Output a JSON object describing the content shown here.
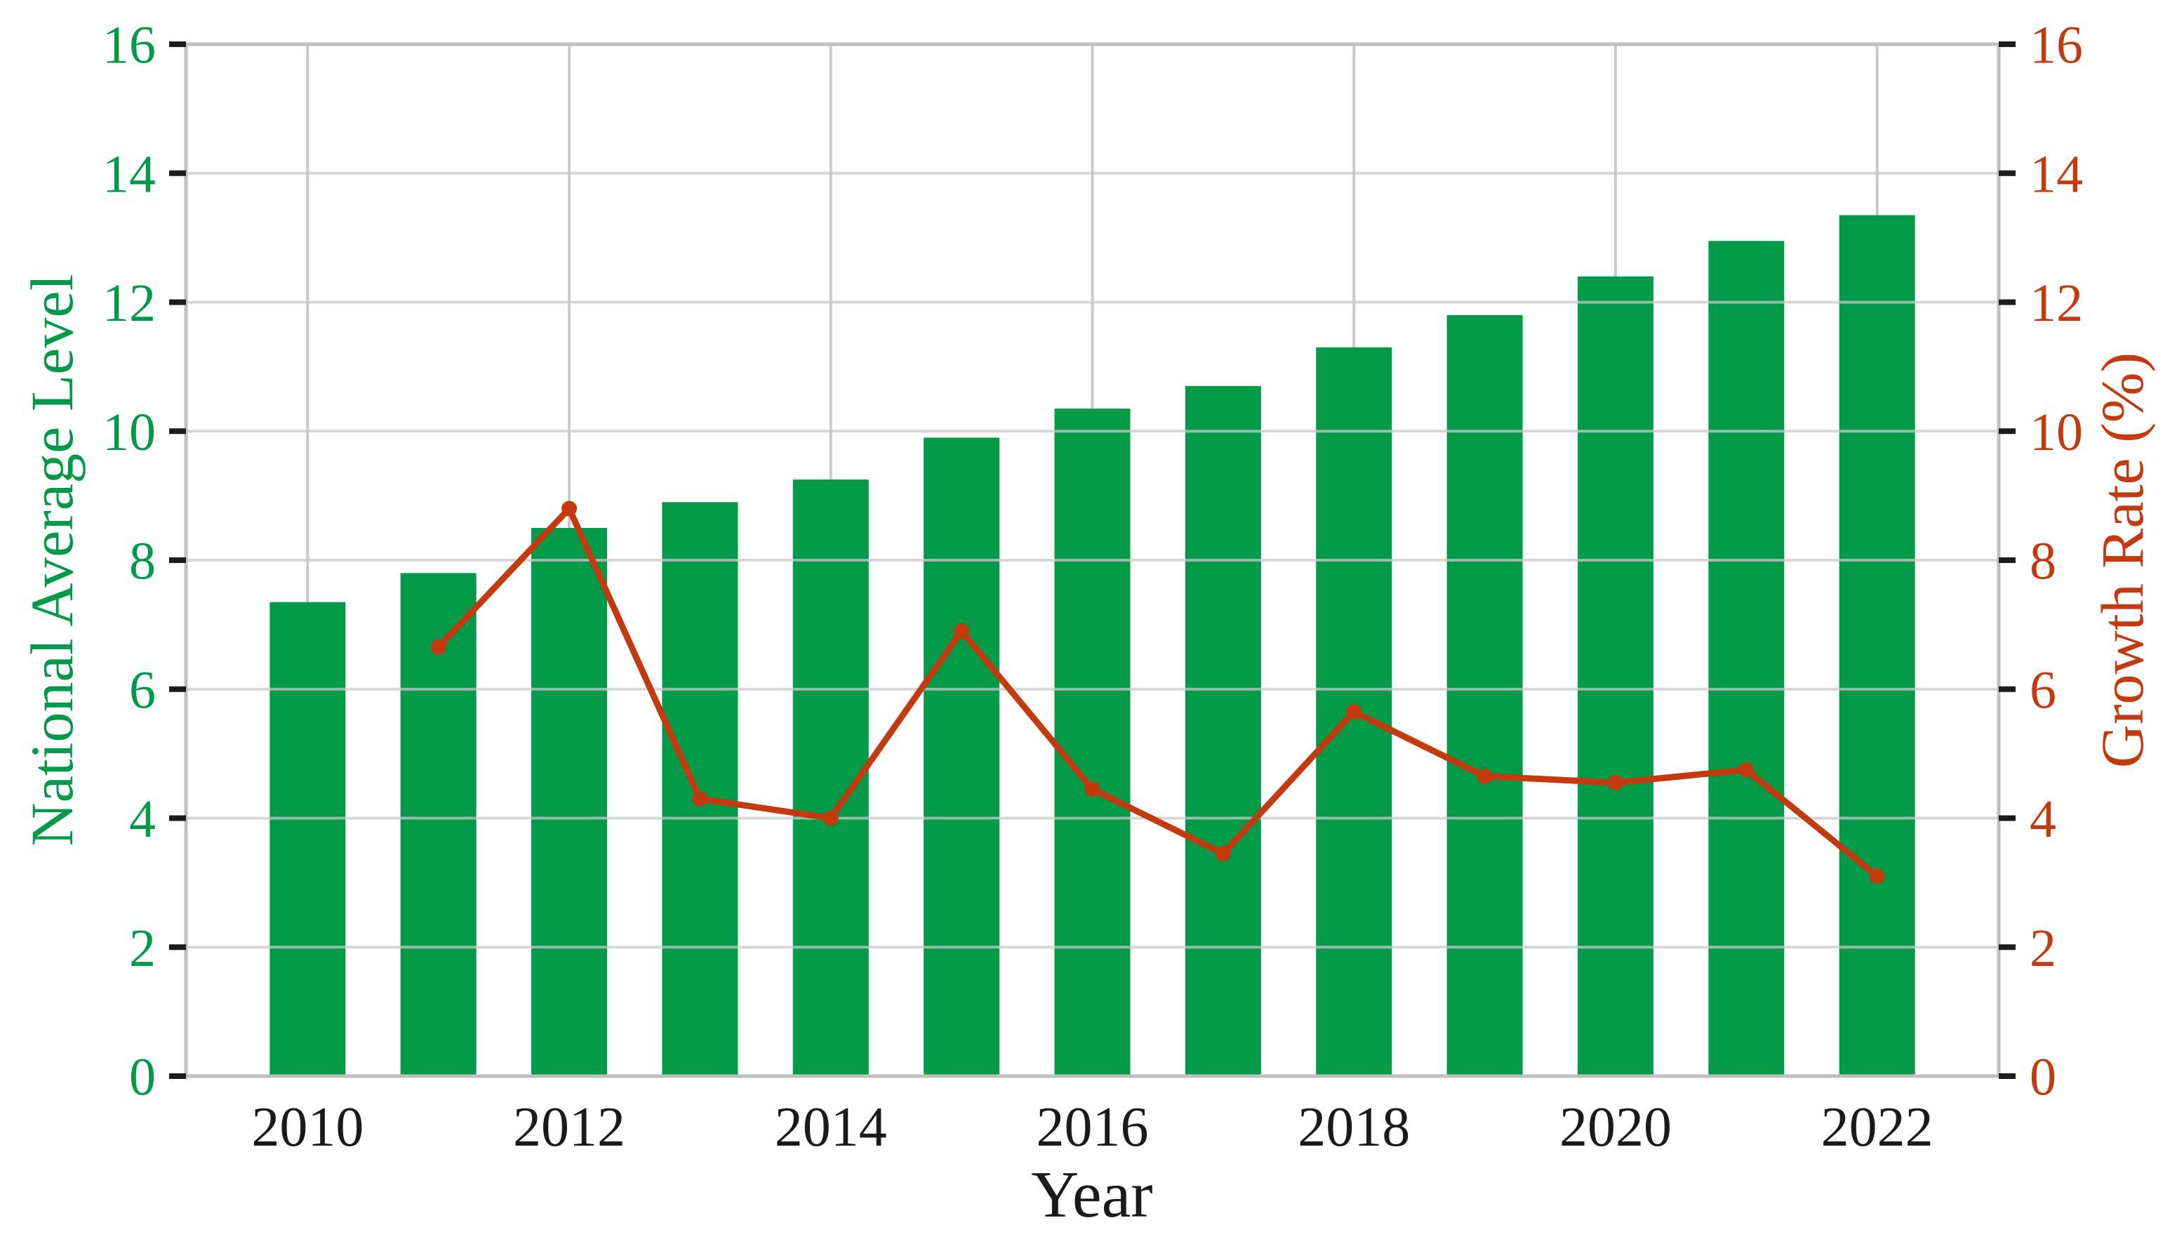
{
  "chart_data": {
    "type": "combo",
    "categories": [
      "2010",
      "2011",
      "2012",
      "2013",
      "2014",
      "2015",
      "2016",
      "2017",
      "2018",
      "2019",
      "2020",
      "2021",
      "2022"
    ],
    "x_tick_labels": [
      "2010",
      "2012",
      "2014",
      "2016",
      "2018",
      "2020",
      "2022"
    ],
    "series": [
      {
        "name": "National Average Level",
        "type": "bar",
        "y_axis": "left",
        "values": [
          7.35,
          7.8,
          8.5,
          8.9,
          9.25,
          9.9,
          10.35,
          10.7,
          11.3,
          11.8,
          12.4,
          12.95,
          13.35
        ]
      },
      {
        "name": "Growth Rate (%)",
        "type": "line",
        "y_axis": "right",
        "values": [
          null,
          6.65,
          8.8,
          4.3,
          4.0,
          6.9,
          4.45,
          3.45,
          5.65,
          4.65,
          4.55,
          4.75,
          3.1
        ]
      }
    ],
    "title": "",
    "xlabel": "Year",
    "ylabel": "National Average Level",
    "ylabel_right": "Growth Rate (%)",
    "ylim": [
      0,
      16
    ],
    "ylim_right": [
      0,
      16
    ],
    "yticks_left": [
      0,
      2,
      4,
      6,
      8,
      10,
      12,
      14,
      16
    ],
    "yticks_right": [
      0,
      2,
      4,
      6,
      8,
      10,
      12,
      14,
      16
    ],
    "grid": true,
    "legend_position": "none"
  },
  "style": {
    "bar_color": "#029a49",
    "line_color": "#c43a0f",
    "left_axis_color": "#029a49",
    "right_axis_color": "#c43a0f",
    "x_text_color": "#1a1a1a",
    "grid_color": "#c9c9c9",
    "spine_color": "#bfbfbf",
    "tick_color": "#1c1c1c"
  }
}
